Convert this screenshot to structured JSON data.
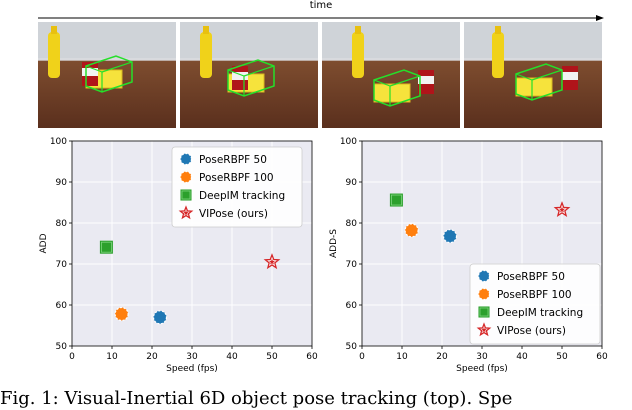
{
  "header": {
    "time_label": "time"
  },
  "frames": [
    {
      "name": "frame-1"
    },
    {
      "name": "frame-2"
    },
    {
      "name": "frame-3"
    },
    {
      "name": "frame-4"
    }
  ],
  "chart_data": [
    {
      "type": "scatter",
      "xlabel": "Speed (fps)",
      "ylabel": "ADD",
      "xlim": [
        0,
        60
      ],
      "ylim": [
        50,
        100
      ],
      "xticks": [
        0,
        10,
        20,
        30,
        40,
        50,
        60
      ],
      "yticks": [
        50,
        60,
        70,
        80,
        90,
        100
      ],
      "grid": true,
      "legend_position": "upper-right",
      "series": [
        {
          "name": "PoseRBPF 50",
          "x": 22,
          "y": 57,
          "color": "#1f77b4",
          "marker": "circle"
        },
        {
          "name": "PoseRBPF 100",
          "x": 12.4,
          "y": 57.8,
          "color": "#ff7f0e",
          "marker": "circle"
        },
        {
          "name": "DeepIM tracking",
          "x": 8.6,
          "y": 74.1,
          "color": "#2ca02c",
          "marker": "square"
        },
        {
          "name": "VIPose (ours)",
          "x": 50,
          "y": 70.5,
          "color": "#d62728",
          "marker": "star"
        }
      ]
    },
    {
      "type": "scatter",
      "xlabel": "Speed (fps)",
      "ylabel": "ADD-S",
      "xlim": [
        0,
        60
      ],
      "ylim": [
        50,
        100
      ],
      "xticks": [
        0,
        10,
        20,
        30,
        40,
        50,
        60
      ],
      "yticks": [
        50,
        60,
        70,
        80,
        90,
        100
      ],
      "grid": true,
      "legend_position": "lower-right",
      "series": [
        {
          "name": "PoseRBPF 50",
          "x": 22,
          "y": 76.8,
          "color": "#1f77b4",
          "marker": "circle"
        },
        {
          "name": "PoseRBPF 100",
          "x": 12.4,
          "y": 78.2,
          "color": "#ff7f0e",
          "marker": "circle"
        },
        {
          "name": "DeepIM tracking",
          "x": 8.6,
          "y": 85.6,
          "color": "#2ca02c",
          "marker": "square"
        },
        {
          "name": "VIPose (ours)",
          "x": 50,
          "y": 83.2,
          "color": "#d62728",
          "marker": "star"
        }
      ]
    }
  ],
  "caption": {
    "text": "Fig. 1: Visual-Inertial 6D object pose tracking (top). Spe"
  }
}
